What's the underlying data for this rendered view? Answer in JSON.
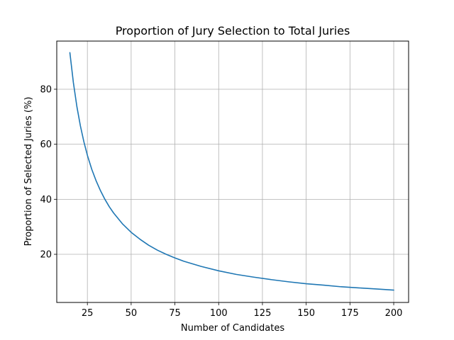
{
  "chart_data": {
    "type": "line",
    "title": "Proportion of Jury Selection to Total Juries",
    "xlabel": "Number of Candidates",
    "ylabel": "Proportion of Selected Juries (%)",
    "xlim": [
      7.5,
      208.5
    ],
    "ylim": [
      2.5,
      97.5
    ],
    "xticks": [
      25,
      50,
      75,
      100,
      125,
      150,
      175,
      200
    ],
    "yticks": [
      20,
      40,
      60,
      80
    ],
    "grid": true,
    "series": [
      {
        "color": "#1f77b4",
        "x": [
          15,
          17,
          19,
          21,
          23,
          25,
          27.5,
          30,
          32.5,
          35,
          37.5,
          40,
          45,
          50,
          55,
          60,
          65,
          70,
          75,
          80,
          90,
          100,
          110,
          120,
          130,
          140,
          150,
          160,
          170,
          180,
          190,
          200
        ],
        "y": [
          93.3,
          82.4,
          73.7,
          66.7,
          60.9,
          56.0,
          50.9,
          46.7,
          43.1,
          40.0,
          37.3,
          35.0,
          31.1,
          28.0,
          25.5,
          23.3,
          21.5,
          20.0,
          18.7,
          17.5,
          15.6,
          14.0,
          12.7,
          11.7,
          10.8,
          10.0,
          9.3,
          8.8,
          8.2,
          7.8,
          7.4,
          7.0
        ]
      }
    ]
  }
}
